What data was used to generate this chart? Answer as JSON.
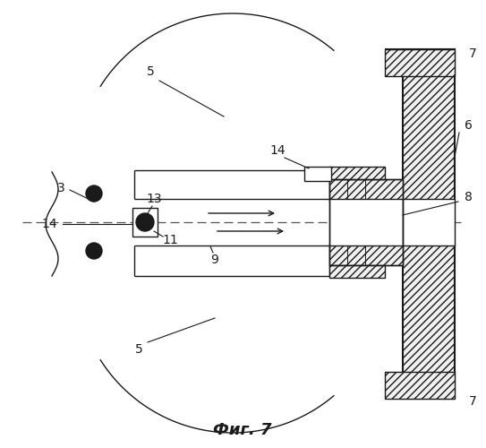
{
  "bg_color": "#ffffff",
  "line_color": "#1a1a1a",
  "title": "Фиг. 7",
  "title_fontsize": 13
}
